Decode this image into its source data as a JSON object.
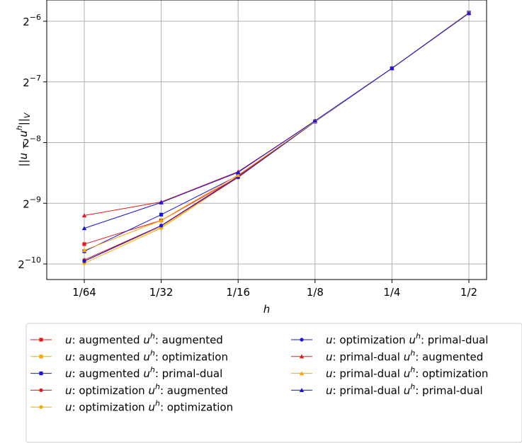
{
  "chart_data": {
    "type": "line",
    "xlabel": "h",
    "ylabel": "||u − u^h||_V",
    "x_scale": "log2",
    "y_scale": "log2",
    "grid": true,
    "legend_position": "bottom",
    "x_ticks": [
      {
        "value": 0.015625,
        "label": "1/64"
      },
      {
        "value": 0.03125,
        "label": "1/32"
      },
      {
        "value": 0.0625,
        "label": "1/16"
      },
      {
        "value": 0.125,
        "label": "1/8"
      },
      {
        "value": 0.25,
        "label": "1/4"
      },
      {
        "value": 0.5,
        "label": "1/2"
      }
    ],
    "y_ticks": [
      {
        "exponent": -6,
        "base": "2",
        "sup": "−6"
      },
      {
        "exponent": -7,
        "base": "2",
        "sup": "−7"
      },
      {
        "exponent": -8,
        "base": "2",
        "sup": "−8"
      },
      {
        "exponent": -9,
        "base": "2",
        "sup": "−9"
      },
      {
        "exponent": -10,
        "base": "2",
        "sup": "−10"
      }
    ],
    "x": [
      0.015625,
      0.03125,
      0.0625,
      0.125,
      0.25,
      0.5
    ],
    "series": [
      {
        "name": "u: augmented u^h: augmented",
        "u": "augmented",
        "uh": "augmented",
        "color": "#e41a1c",
        "marker": "square",
        "values": [
          0.001225,
          0.001605,
          0.002637,
          0.004985,
          0.00913,
          0.01713
        ]
      },
      {
        "name": "u: augmented u^h: optimization",
        "u": "augmented",
        "uh": "optimization",
        "color": "#ffa500",
        "marker": "square",
        "values": [
          0.001009,
          0.001495,
          0.002622,
          0.004968,
          0.009127,
          0.01719
        ]
      },
      {
        "name": "u: augmented u^h: primal-dual",
        "u": "augmented",
        "uh": "primal-dual",
        "color": "#1515e6",
        "marker": "square",
        "values": [
          0.001129,
          0.001716,
          0.002678,
          0.004959,
          0.009128,
          0.01725
        ]
      },
      {
        "name": "u: optimization u^h: augmented",
        "u": "optimization",
        "uh": "augmented",
        "color": "#e41a1c",
        "marker": "circle",
        "values": [
          0.001022,
          0.001514,
          0.002656,
          0.004977,
          0.009124,
          0.01713
        ]
      },
      {
        "name": "u: optimization u^h: optimization",
        "u": "optimization",
        "uh": "optimization",
        "color": "#ffa500",
        "marker": "circle",
        "values": [
          0.000985,
          0.001472,
          0.002628,
          0.004959,
          0.00913,
          0.01719
        ]
      },
      {
        "name": "u: optimization u^h: primal-dual",
        "u": "optimization",
        "uh": "primal-dual",
        "color": "#1515e6",
        "marker": "circle",
        "values": [
          0.001008,
          0.001514,
          0.002628,
          0.004959,
          0.009128,
          0.01713
        ]
      },
      {
        "name": "u: primal-dual u^h: augmented",
        "u": "primal-dual",
        "uh": "augmented",
        "color": "#e41a1c",
        "marker": "triangle",
        "values": [
          0.001699,
          0.001983,
          0.002802,
          0.004994,
          0.009129,
          0.01719
        ]
      },
      {
        "name": "u: primal-dual u^h: optimization",
        "u": "primal-dual",
        "uh": "optimization",
        "color": "#ffa500",
        "marker": "triangle",
        "values": [
          0.001142,
          0.001605,
          0.002693,
          0.004976,
          0.009128,
          0.01725
        ]
      },
      {
        "name": "u: primal-dual u^h: primal-dual",
        "u": "primal-dual",
        "uh": "primal-dual",
        "color": "#1515e6",
        "marker": "triangle",
        "values": [
          0.001468,
          0.001971,
          0.002782,
          0.005011,
          0.009128,
          0.01713
        ]
      }
    ]
  }
}
